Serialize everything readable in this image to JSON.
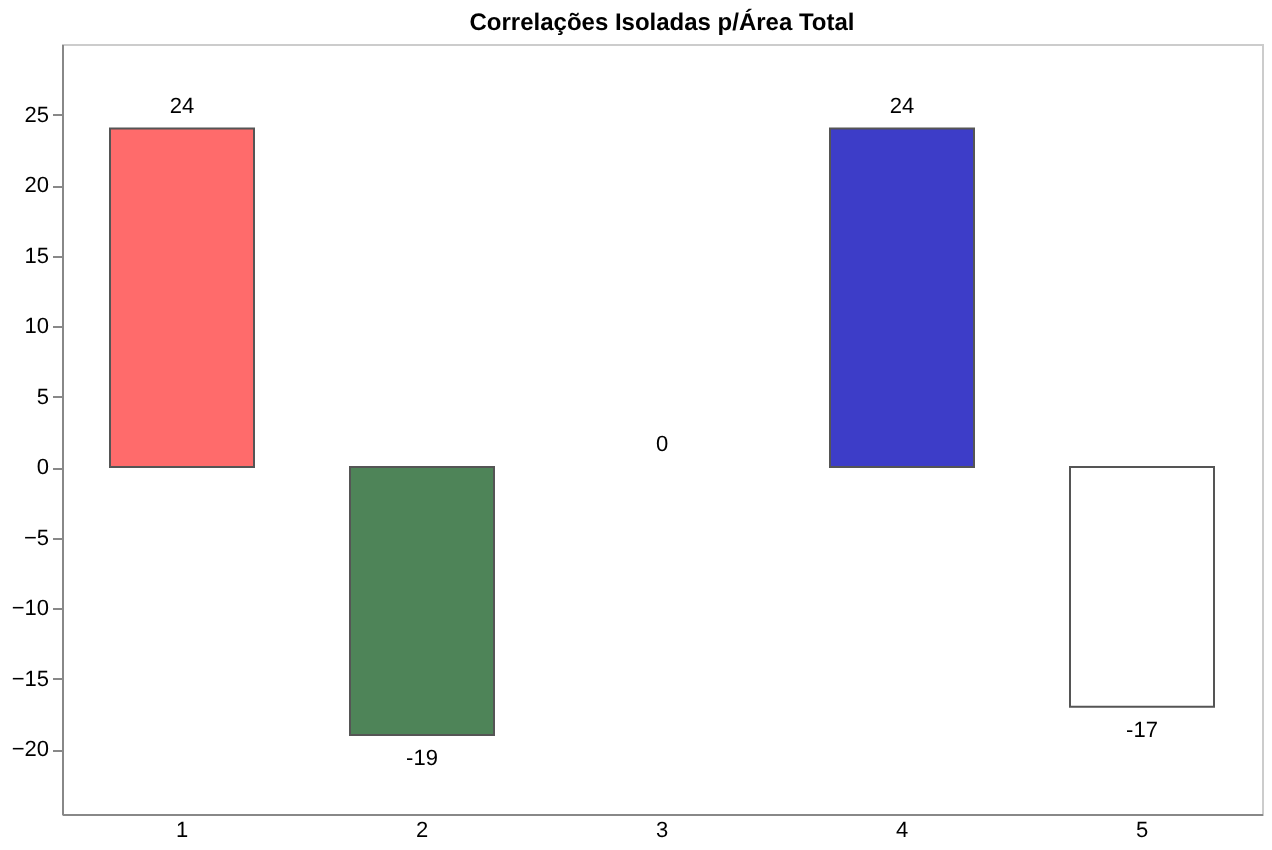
{
  "chart_data": {
    "type": "bar",
    "title": "Correlações Isoladas p/Área Total",
    "categories": [
      "1",
      "2",
      "3",
      "4",
      "5"
    ],
    "values": [
      24,
      -19,
      0,
      24,
      -17
    ],
    "colors": [
      "#ff6b6b",
      "#4e8458",
      "#ffffff",
      "#3d3dc8",
      "#ffffff"
    ],
    "ylim": [
      -24.6,
      30
    ],
    "yticks": [
      -20,
      -15,
      -10,
      -5,
      0,
      5,
      10,
      15,
      20,
      25
    ],
    "grid": false,
    "data_labels": true
  }
}
